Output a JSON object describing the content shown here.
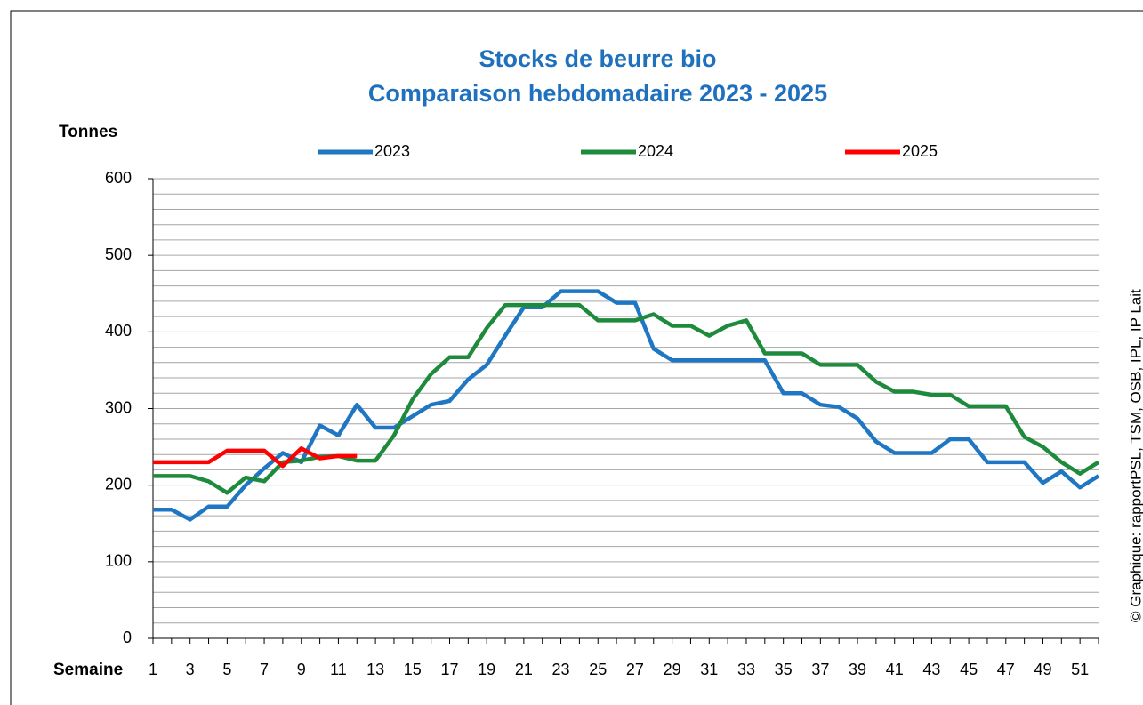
{
  "chart_data": {
    "type": "line",
    "title": "Stocks de beurre bio",
    "subtitle": "Comparaison hebdomadaire 2023 - 2025",
    "y_label": "Tonnes",
    "x_label": "Semaine",
    "source": "© Graphique: rapportPSL, TSM, OSB, IPL, IP Lait",
    "x": [
      1,
      2,
      3,
      4,
      5,
      6,
      7,
      8,
      9,
      10,
      11,
      12,
      13,
      14,
      15,
      16,
      17,
      18,
      19,
      20,
      21,
      22,
      23,
      24,
      25,
      26,
      27,
      28,
      29,
      30,
      31,
      32,
      33,
      34,
      35,
      36,
      37,
      38,
      39,
      40,
      41,
      42,
      43,
      44,
      45,
      46,
      47,
      48,
      49,
      50,
      51,
      52
    ],
    "xlim": [
      1,
      52
    ],
    "xticks": [
      1,
      3,
      5,
      7,
      9,
      11,
      13,
      15,
      17,
      19,
      21,
      23,
      25,
      27,
      29,
      31,
      33,
      35,
      37,
      39,
      41,
      43,
      45,
      47,
      49,
      51
    ],
    "ylim": [
      0,
      600
    ],
    "yticks": [
      0,
      100,
      200,
      300,
      400,
      500,
      600
    ],
    "yminorticks": [
      20,
      40,
      60,
      80,
      120,
      140,
      160,
      180,
      220,
      240,
      260,
      280,
      320,
      340,
      360,
      380,
      420,
      440,
      460,
      480,
      520,
      540,
      560,
      580
    ],
    "grid": true,
    "legend": "top",
    "series": [
      {
        "name": "2023",
        "color": "#1f77c4",
        "values": [
          168,
          168,
          155,
          172,
          172,
          200,
          222,
          242,
          230,
          278,
          265,
          305,
          275,
          275,
          290,
          305,
          310,
          338,
          357,
          395,
          432,
          432,
          453,
          453,
          453,
          438,
          438,
          378,
          363,
          363,
          363,
          363,
          363,
          363,
          320,
          320,
          305,
          302,
          287,
          257,
          242,
          242,
          242,
          260,
          260,
          230,
          230,
          230,
          203,
          218,
          197,
          212
        ]
      },
      {
        "name": "2024",
        "color": "#1e8a3c",
        "values": [
          212,
          212,
          212,
          205,
          190,
          210,
          205,
          230,
          232,
          237,
          238,
          232,
          232,
          265,
          312,
          345,
          367,
          367,
          405,
          435,
          435,
          435,
          435,
          435,
          415,
          415,
          415,
          423,
          408,
          408,
          395,
          408,
          415,
          372,
          372,
          372,
          357,
          357,
          357,
          335,
          322,
          322,
          318,
          318,
          303,
          303,
          303,
          263,
          250,
          230,
          215,
          230
        ]
      },
      {
        "name": "2025",
        "color": "#ff0000",
        "values": [
          230,
          230,
          230,
          230,
          245,
          245,
          245,
          225,
          248,
          235,
          238,
          238,
          null,
          null,
          null,
          null,
          null,
          null,
          null,
          null,
          null,
          null,
          null,
          null,
          null,
          null,
          null,
          null,
          null,
          null,
          null,
          null,
          null,
          null,
          null,
          null,
          null,
          null,
          null,
          null,
          null,
          null,
          null,
          null,
          null,
          null,
          null,
          null,
          null,
          null,
          null,
          null
        ]
      }
    ]
  }
}
